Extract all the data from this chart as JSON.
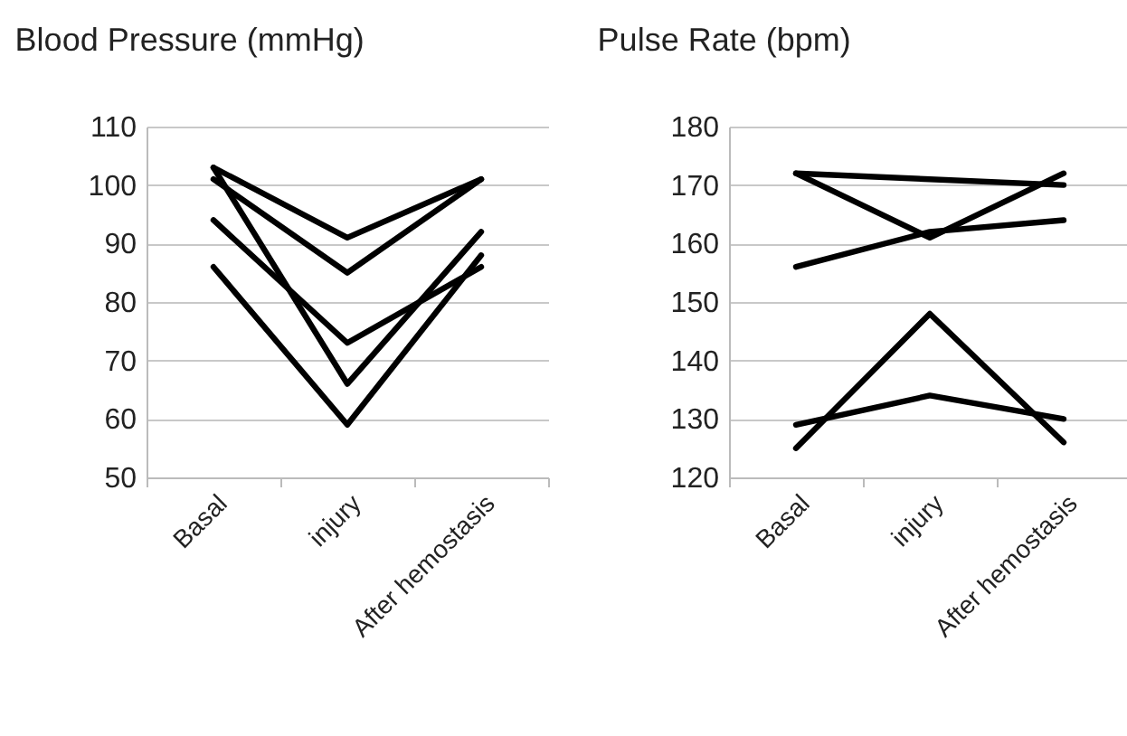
{
  "chart_data": [
    {
      "type": "line",
      "title": "Blood Pressure (mmHg)",
      "categories": [
        "Basal",
        "injury",
        "After hemostasis"
      ],
      "ylim": [
        50,
        110
      ],
      "yticks": [
        50,
        60,
        70,
        80,
        90,
        100,
        110
      ],
      "grid": "y",
      "series": [
        {
          "color": "#000000",
          "values": [
            103,
            91,
            101
          ]
        },
        {
          "color": "#000000",
          "values": [
            101,
            85,
            101
          ]
        },
        {
          "color": "#000000",
          "values": [
            103,
            66,
            92
          ]
        },
        {
          "color": "#000000",
          "values": [
            94,
            73,
            86
          ]
        },
        {
          "color": "#000000",
          "values": [
            86,
            59,
            88
          ]
        }
      ]
    },
    {
      "type": "line",
      "title": "Pulse Rate (bpm)",
      "categories": [
        "Basal",
        "injury",
        "After hemostasis"
      ],
      "ylim": [
        120,
        180
      ],
      "yticks": [
        120,
        130,
        140,
        150,
        160,
        170,
        180
      ],
      "grid": "y",
      "series": [
        {
          "color": "#000000",
          "values": [
            172,
            171,
            170
          ]
        },
        {
          "color": "#000000",
          "values": [
            172,
            161,
            172
          ]
        },
        {
          "color": "#000000",
          "values": [
            156,
            162,
            164
          ]
        },
        {
          "color": "#000000",
          "values": [
            125,
            148,
            126
          ]
        },
        {
          "color": "#000000",
          "values": [
            129,
            134,
            130
          ]
        }
      ]
    }
  ]
}
